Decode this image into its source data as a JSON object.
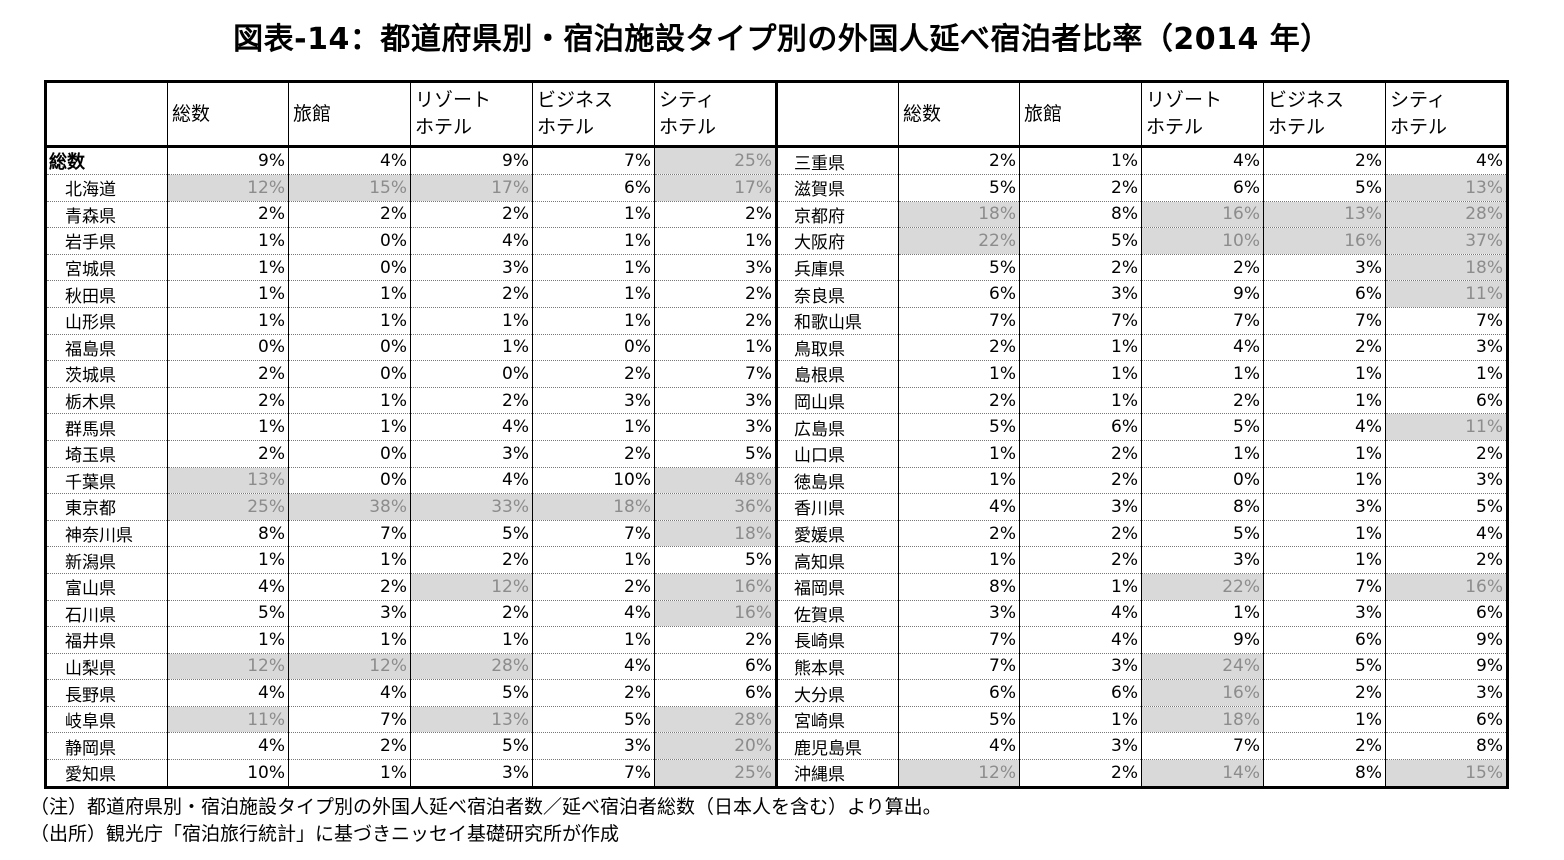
{
  "title": "図表-14：都道府県別・宿泊施設タイプ別の外国人延べ宿泊者比率（2014 年）",
  "chart_data": {
    "type": "table",
    "columns": [
      "総数",
      "旅館",
      "リゾートホテル",
      "ビジネスホテル",
      "シティホテル"
    ],
    "column_labels": [
      [
        "総数"
      ],
      [
        "旅館"
      ],
      [
        "リゾート",
        "ホテル"
      ],
      [
        "ビジネス",
        "ホテル"
      ],
      [
        "シティ",
        "ホテル"
      ]
    ],
    "highlight_color": "#d9d9d9",
    "left_rows": [
      {
        "name": "総数",
        "values": [
          "9%",
          "4%",
          "9%",
          "7%",
          "25%"
        ],
        "hl": [
          0,
          0,
          0,
          0,
          1
        ]
      },
      {
        "name": "北海道",
        "values": [
          "12%",
          "15%",
          "17%",
          "6%",
          "17%"
        ],
        "hl": [
          1,
          1,
          1,
          0,
          1
        ]
      },
      {
        "name": "青森県",
        "values": [
          "2%",
          "2%",
          "2%",
          "1%",
          "2%"
        ],
        "hl": [
          0,
          0,
          0,
          0,
          0
        ]
      },
      {
        "name": "岩手県",
        "values": [
          "1%",
          "0%",
          "4%",
          "1%",
          "1%"
        ],
        "hl": [
          0,
          0,
          0,
          0,
          0
        ]
      },
      {
        "name": "宮城県",
        "values": [
          "1%",
          "0%",
          "3%",
          "1%",
          "3%"
        ],
        "hl": [
          0,
          0,
          0,
          0,
          0
        ]
      },
      {
        "name": "秋田県",
        "values": [
          "1%",
          "1%",
          "2%",
          "1%",
          "2%"
        ],
        "hl": [
          0,
          0,
          0,
          0,
          0
        ]
      },
      {
        "name": "山形県",
        "values": [
          "1%",
          "1%",
          "1%",
          "1%",
          "2%"
        ],
        "hl": [
          0,
          0,
          0,
          0,
          0
        ]
      },
      {
        "name": "福島県",
        "values": [
          "0%",
          "0%",
          "1%",
          "0%",
          "1%"
        ],
        "hl": [
          0,
          0,
          0,
          0,
          0
        ]
      },
      {
        "name": "茨城県",
        "values": [
          "2%",
          "0%",
          "0%",
          "2%",
          "7%"
        ],
        "hl": [
          0,
          0,
          0,
          0,
          0
        ]
      },
      {
        "name": "栃木県",
        "values": [
          "2%",
          "1%",
          "2%",
          "3%",
          "3%"
        ],
        "hl": [
          0,
          0,
          0,
          0,
          0
        ]
      },
      {
        "name": "群馬県",
        "values": [
          "1%",
          "1%",
          "4%",
          "1%",
          "3%"
        ],
        "hl": [
          0,
          0,
          0,
          0,
          0
        ]
      },
      {
        "name": "埼玉県",
        "values": [
          "2%",
          "0%",
          "3%",
          "2%",
          "5%"
        ],
        "hl": [
          0,
          0,
          0,
          0,
          0
        ]
      },
      {
        "name": "千葉県",
        "values": [
          "13%",
          "0%",
          "4%",
          "10%",
          "48%"
        ],
        "hl": [
          1,
          0,
          0,
          0,
          1
        ]
      },
      {
        "name": "東京都",
        "values": [
          "25%",
          "38%",
          "33%",
          "18%",
          "36%"
        ],
        "hl": [
          1,
          1,
          1,
          1,
          1
        ]
      },
      {
        "name": "神奈川県",
        "values": [
          "8%",
          "7%",
          "5%",
          "7%",
          "18%"
        ],
        "hl": [
          0,
          0,
          0,
          0,
          1
        ]
      },
      {
        "name": "新潟県",
        "values": [
          "1%",
          "1%",
          "2%",
          "1%",
          "5%"
        ],
        "hl": [
          0,
          0,
          0,
          0,
          0
        ]
      },
      {
        "name": "富山県",
        "values": [
          "4%",
          "2%",
          "12%",
          "2%",
          "16%"
        ],
        "hl": [
          0,
          0,
          1,
          0,
          1
        ]
      },
      {
        "name": "石川県",
        "values": [
          "5%",
          "3%",
          "2%",
          "4%",
          "16%"
        ],
        "hl": [
          0,
          0,
          0,
          0,
          1
        ]
      },
      {
        "name": "福井県",
        "values": [
          "1%",
          "1%",
          "1%",
          "1%",
          "2%"
        ],
        "hl": [
          0,
          0,
          0,
          0,
          0
        ]
      },
      {
        "name": "山梨県",
        "values": [
          "12%",
          "12%",
          "28%",
          "4%",
          "6%"
        ],
        "hl": [
          1,
          1,
          1,
          0,
          0
        ]
      },
      {
        "name": "長野県",
        "values": [
          "4%",
          "4%",
          "5%",
          "2%",
          "6%"
        ],
        "hl": [
          0,
          0,
          0,
          0,
          0
        ]
      },
      {
        "name": "岐阜県",
        "values": [
          "11%",
          "7%",
          "13%",
          "5%",
          "28%"
        ],
        "hl": [
          1,
          0,
          1,
          0,
          1
        ]
      },
      {
        "name": "静岡県",
        "values": [
          "4%",
          "2%",
          "5%",
          "3%",
          "20%"
        ],
        "hl": [
          0,
          0,
          0,
          0,
          1
        ]
      },
      {
        "name": "愛知県",
        "values": [
          "10%",
          "1%",
          "3%",
          "7%",
          "25%"
        ],
        "hl": [
          0,
          0,
          0,
          0,
          1
        ]
      }
    ],
    "right_rows": [
      {
        "name": "三重県",
        "values": [
          "2%",
          "1%",
          "4%",
          "2%",
          "4%"
        ],
        "hl": [
          0,
          0,
          0,
          0,
          0
        ]
      },
      {
        "name": "滋賀県",
        "values": [
          "5%",
          "2%",
          "6%",
          "5%",
          "13%"
        ],
        "hl": [
          0,
          0,
          0,
          0,
          1
        ]
      },
      {
        "name": "京都府",
        "values": [
          "18%",
          "8%",
          "16%",
          "13%",
          "28%"
        ],
        "hl": [
          1,
          0,
          1,
          1,
          1
        ]
      },
      {
        "name": "大阪府",
        "values": [
          "22%",
          "5%",
          "10%",
          "16%",
          "37%"
        ],
        "hl": [
          1,
          0,
          1,
          1,
          1
        ]
      },
      {
        "name": "兵庫県",
        "values": [
          "5%",
          "2%",
          "2%",
          "3%",
          "18%"
        ],
        "hl": [
          0,
          0,
          0,
          0,
          1
        ]
      },
      {
        "name": "奈良県",
        "values": [
          "6%",
          "3%",
          "9%",
          "6%",
          "11%"
        ],
        "hl": [
          0,
          0,
          0,
          0,
          1
        ]
      },
      {
        "name": "和歌山県",
        "values": [
          "7%",
          "7%",
          "7%",
          "7%",
          "7%"
        ],
        "hl": [
          0,
          0,
          0,
          0,
          0
        ]
      },
      {
        "name": "鳥取県",
        "values": [
          "2%",
          "1%",
          "4%",
          "2%",
          "3%"
        ],
        "hl": [
          0,
          0,
          0,
          0,
          0
        ]
      },
      {
        "name": "島根県",
        "values": [
          "1%",
          "1%",
          "1%",
          "1%",
          "1%"
        ],
        "hl": [
          0,
          0,
          0,
          0,
          0
        ]
      },
      {
        "name": "岡山県",
        "values": [
          "2%",
          "1%",
          "2%",
          "1%",
          "6%"
        ],
        "hl": [
          0,
          0,
          0,
          0,
          0
        ]
      },
      {
        "name": "広島県",
        "values": [
          "5%",
          "6%",
          "5%",
          "4%",
          "11%"
        ],
        "hl": [
          0,
          0,
          0,
          0,
          1
        ]
      },
      {
        "name": "山口県",
        "values": [
          "1%",
          "2%",
          "1%",
          "1%",
          "2%"
        ],
        "hl": [
          0,
          0,
          0,
          0,
          0
        ]
      },
      {
        "name": "徳島県",
        "values": [
          "1%",
          "2%",
          "0%",
          "1%",
          "3%"
        ],
        "hl": [
          0,
          0,
          0,
          0,
          0
        ]
      },
      {
        "name": "香川県",
        "values": [
          "4%",
          "3%",
          "8%",
          "3%",
          "5%"
        ],
        "hl": [
          0,
          0,
          0,
          0,
          0
        ]
      },
      {
        "name": "愛媛県",
        "values": [
          "2%",
          "2%",
          "5%",
          "1%",
          "4%"
        ],
        "hl": [
          0,
          0,
          0,
          0,
          0
        ]
      },
      {
        "name": "高知県",
        "values": [
          "1%",
          "2%",
          "3%",
          "1%",
          "2%"
        ],
        "hl": [
          0,
          0,
          0,
          0,
          0
        ]
      },
      {
        "name": "福岡県",
        "values": [
          "8%",
          "1%",
          "22%",
          "7%",
          "16%"
        ],
        "hl": [
          0,
          0,
          1,
          0,
          1
        ]
      },
      {
        "name": "佐賀県",
        "values": [
          "3%",
          "4%",
          "1%",
          "3%",
          "6%"
        ],
        "hl": [
          0,
          0,
          0,
          0,
          0
        ]
      },
      {
        "name": "長崎県",
        "values": [
          "7%",
          "4%",
          "9%",
          "6%",
          "9%"
        ],
        "hl": [
          0,
          0,
          0,
          0,
          0
        ]
      },
      {
        "name": "熊本県",
        "values": [
          "7%",
          "3%",
          "24%",
          "5%",
          "9%"
        ],
        "hl": [
          0,
          0,
          1,
          0,
          0
        ]
      },
      {
        "name": "大分県",
        "values": [
          "6%",
          "6%",
          "16%",
          "2%",
          "3%"
        ],
        "hl": [
          0,
          0,
          1,
          0,
          0
        ]
      },
      {
        "name": "宮崎県",
        "values": [
          "5%",
          "1%",
          "18%",
          "1%",
          "6%"
        ],
        "hl": [
          0,
          0,
          1,
          0,
          0
        ]
      },
      {
        "name": "鹿児島県",
        "values": [
          "4%",
          "3%",
          "7%",
          "2%",
          "8%"
        ],
        "hl": [
          0,
          0,
          0,
          0,
          0
        ]
      },
      {
        "name": "沖縄県",
        "values": [
          "12%",
          "2%",
          "14%",
          "8%",
          "15%"
        ],
        "hl": [
          1,
          0,
          1,
          0,
          1
        ]
      }
    ]
  },
  "notes": {
    "note": "（注）都道府県別・宿泊施設タイプ別の外国人延べ宿泊者数／延べ宿泊者総数（日本人を含む）より算出。",
    "source": "（出所）観光庁「宿泊旅行統計」に基づきニッセイ基礎研究所が作成"
  }
}
